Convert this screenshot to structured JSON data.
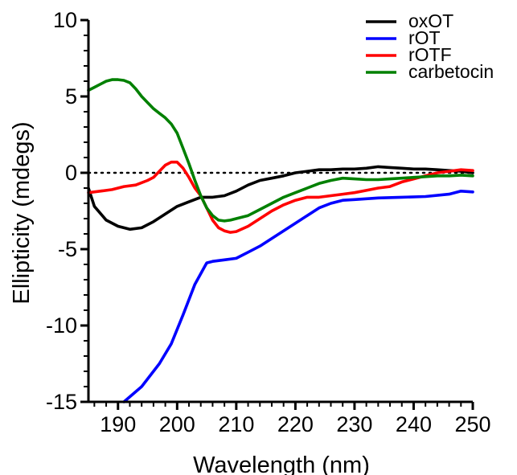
{
  "chart_data": {
    "type": "line",
    "title": "",
    "xlabel": "Wavelength (nm)",
    "ylabel": "Ellipticity (mdegs)",
    "xlim": [
      185,
      250
    ],
    "ylim": [
      -15,
      10
    ],
    "xticks": [
      190,
      200,
      210,
      220,
      230,
      240,
      250
    ],
    "yticks": [
      -15,
      -10,
      -5,
      0,
      5,
      10
    ],
    "grid": false,
    "reference_line": {
      "y": 0,
      "style": "dotted"
    },
    "legend_position": "top-right",
    "series": [
      {
        "name": "oxOT",
        "color": "#000000",
        "x": [
          185,
          186,
          188,
          190,
          192,
          194,
          196,
          198,
          200,
          202,
          204,
          206,
          208,
          210,
          212,
          214,
          216,
          218,
          220,
          222,
          224,
          226,
          228,
          230,
          232,
          234,
          236,
          238,
          240,
          242,
          244,
          246,
          248,
          250
        ],
        "y": [
          -1.0,
          -2.2,
          -3.1,
          -3.5,
          -3.7,
          -3.6,
          -3.2,
          -2.7,
          -2.2,
          -1.9,
          -1.6,
          -1.6,
          -1.5,
          -1.2,
          -0.8,
          -0.5,
          -0.35,
          -0.2,
          0.0,
          0.1,
          0.2,
          0.2,
          0.25,
          0.25,
          0.3,
          0.4,
          0.35,
          0.3,
          0.25,
          0.25,
          0.2,
          0.15,
          0.1,
          0.0
        ]
      },
      {
        "name": "rOT",
        "color": "#0000ff",
        "x": [
          191,
          194,
          197,
          199,
          201,
          203,
          205,
          206,
          208,
          210,
          212,
          214,
          216,
          218,
          220,
          222,
          224,
          226,
          228,
          230,
          234,
          238,
          242,
          246,
          248,
          250
        ],
        "y": [
          -15.0,
          -14.0,
          -12.5,
          -11.2,
          -9.3,
          -7.3,
          -5.9,
          -5.8,
          -5.7,
          -5.6,
          -5.2,
          -4.8,
          -4.3,
          -3.8,
          -3.3,
          -2.8,
          -2.3,
          -2.0,
          -1.8,
          -1.75,
          -1.65,
          -1.6,
          -1.55,
          -1.4,
          -1.2,
          -1.25
        ]
      },
      {
        "name": "rOTF",
        "color": "#ff0000",
        "x": [
          185,
          187,
          189,
          191,
          193,
          195,
          196,
          197,
          198,
          199,
          200,
          201,
          202,
          203,
          204,
          205,
          206,
          207,
          208,
          209,
          210,
          212,
          214,
          216,
          218,
          220,
          222,
          224,
          226,
          228,
          230,
          232,
          234,
          236,
          238,
          240,
          242,
          244,
          246,
          248,
          250
        ],
        "y": [
          -1.3,
          -1.2,
          -1.1,
          -0.9,
          -0.8,
          -0.5,
          -0.3,
          0.1,
          0.5,
          0.7,
          0.7,
          0.3,
          -0.3,
          -1.0,
          -1.5,
          -2.3,
          -3.1,
          -3.6,
          -3.8,
          -3.9,
          -3.85,
          -3.5,
          -3.0,
          -2.5,
          -2.1,
          -1.8,
          -1.6,
          -1.6,
          -1.5,
          -1.4,
          -1.3,
          -1.15,
          -1.0,
          -0.9,
          -0.6,
          -0.4,
          -0.2,
          0.0,
          0.1,
          0.2,
          0.15
        ]
      },
      {
        "name": "carbetocin",
        "color": "#008000",
        "x": [
          185,
          186,
          187,
          188,
          189,
          190,
          191,
          192,
          193,
          194,
          195,
          196,
          197,
          198,
          199,
          200,
          201,
          202,
          203,
          204,
          205,
          206,
          207,
          208,
          209,
          210,
          212,
          214,
          216,
          218,
          220,
          222,
          224,
          226,
          228,
          230,
          232,
          234,
          236,
          238,
          240,
          242,
          244,
          246,
          248,
          250
        ],
        "y": [
          5.4,
          5.6,
          5.8,
          6.0,
          6.1,
          6.1,
          6.05,
          5.9,
          5.5,
          5.0,
          4.6,
          4.2,
          3.9,
          3.6,
          3.2,
          2.6,
          1.6,
          0.6,
          -0.5,
          -1.5,
          -2.3,
          -2.8,
          -3.1,
          -3.15,
          -3.1,
          -3.0,
          -2.8,
          -2.4,
          -2.0,
          -1.6,
          -1.3,
          -1.0,
          -0.7,
          -0.5,
          -0.35,
          -0.4,
          -0.45,
          -0.45,
          -0.4,
          -0.35,
          -0.3,
          -0.25,
          -0.2,
          -0.2,
          -0.15,
          -0.2
        ]
      }
    ]
  }
}
